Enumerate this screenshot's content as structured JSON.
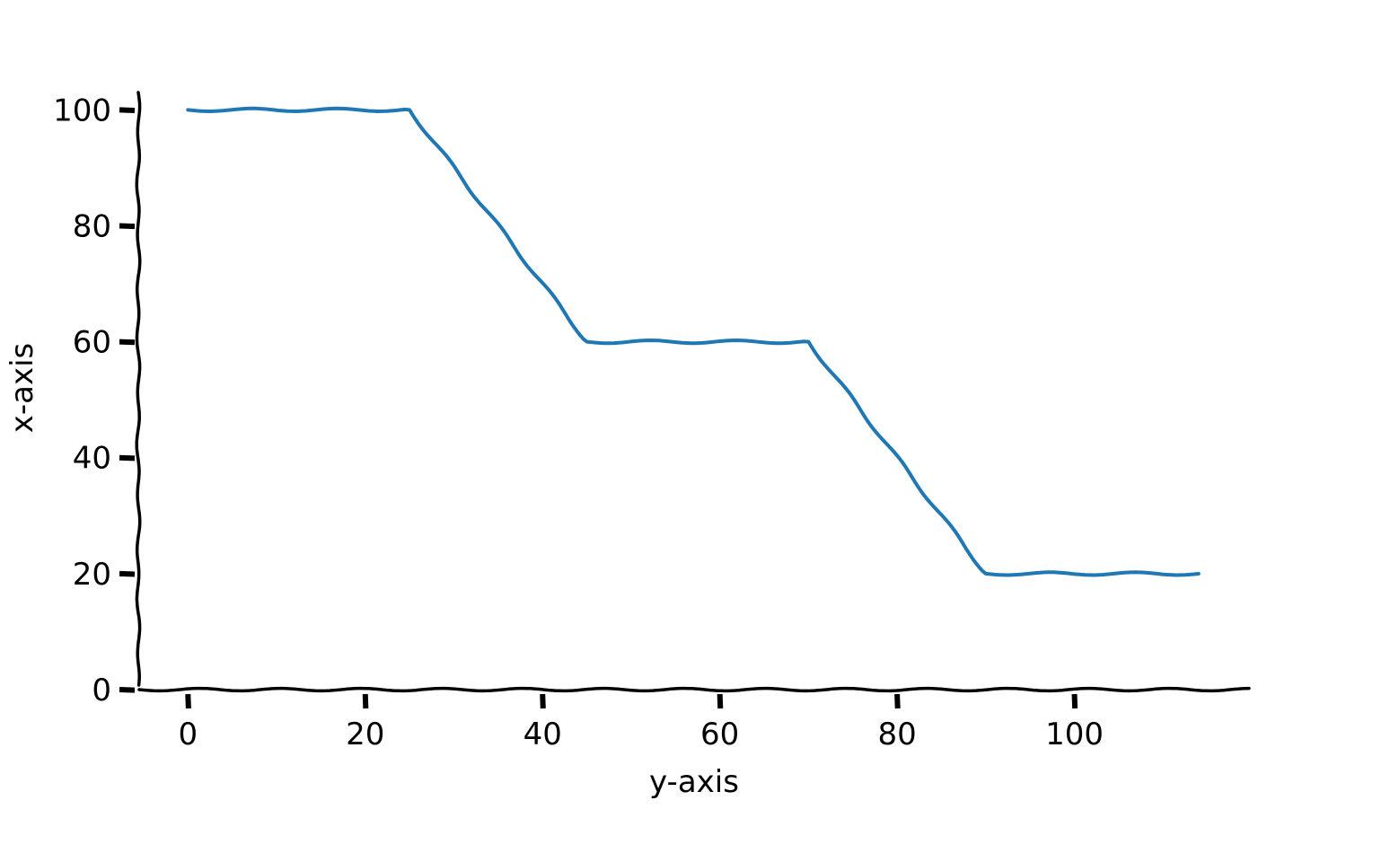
{
  "chart_data": {
    "type": "line",
    "style": "xkcd",
    "title": "",
    "xlabel": "y-axis",
    "ylabel": "x-axis",
    "xlim": [
      -5.5,
      120
    ],
    "ylim": [
      0,
      103
    ],
    "x_ticks": [
      "0",
      "20",
      "40",
      "60",
      "80",
      "100"
    ],
    "y_ticks": [
      "0",
      "20",
      "40",
      "60",
      "80",
      "100"
    ],
    "grid": false,
    "legend": "none",
    "series": [
      {
        "color": "#1f77b4",
        "x": [
          0,
          25,
          45,
          70,
          90,
          114
        ],
        "y": [
          100,
          100,
          60,
          60,
          20,
          20
        ]
      }
    ]
  }
}
